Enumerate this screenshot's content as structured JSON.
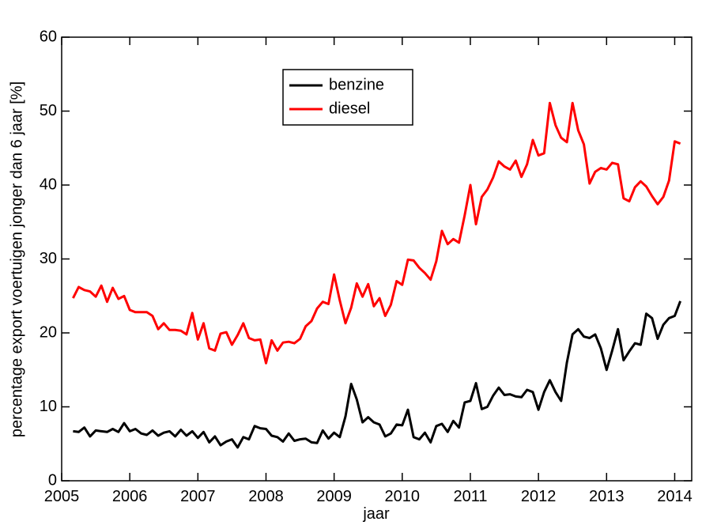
{
  "chart_data": {
    "type": "line",
    "xlabel": "jaar",
    "ylabel": "percentage export voertuigen jonger dan 6 jaar [%]",
    "x": [
      2005.167,
      2005.25,
      2005.333,
      2005.417,
      2005.5,
      2005.583,
      2005.667,
      2005.75,
      2005.833,
      2005.917,
      2006,
      2006.083,
      2006.167,
      2006.25,
      2006.333,
      2006.417,
      2006.5,
      2006.583,
      2006.667,
      2006.75,
      2006.833,
      2006.917,
      2007,
      2007.083,
      2007.167,
      2007.25,
      2007.333,
      2007.417,
      2007.5,
      2007.583,
      2007.667,
      2007.75,
      2007.833,
      2007.917,
      2008,
      2008.083,
      2008.167,
      2008.25,
      2008.333,
      2008.417,
      2008.5,
      2008.583,
      2008.667,
      2008.75,
      2008.833,
      2008.917,
      2009,
      2009.083,
      2009.167,
      2009.25,
      2009.333,
      2009.417,
      2009.5,
      2009.583,
      2009.667,
      2009.75,
      2009.833,
      2009.917,
      2010,
      2010.083,
      2010.167,
      2010.25,
      2010.333,
      2010.417,
      2010.5,
      2010.583,
      2010.667,
      2010.75,
      2010.833,
      2010.917,
      2011,
      2011.083,
      2011.167,
      2011.25,
      2011.333,
      2011.417,
      2011.5,
      2011.583,
      2011.667,
      2011.75,
      2011.833,
      2011.917,
      2012,
      2012.083,
      2012.167,
      2012.25,
      2012.333,
      2012.417,
      2012.5,
      2012.583,
      2012.667,
      2012.75,
      2012.833,
      2012.917,
      2013,
      2013.083,
      2013.167,
      2013.25,
      2013.333,
      2013.417,
      2013.5,
      2013.583,
      2013.667,
      2013.75,
      2013.833,
      2013.917,
      2014,
      2014.083
    ],
    "series": [
      {
        "name": "benzine",
        "color": "#000000",
        "values": [
          6.7,
          6.6,
          7.2,
          6.0,
          6.8,
          6.7,
          6.6,
          7.0,
          6.6,
          7.8,
          6.7,
          7.0,
          6.4,
          6.2,
          6.8,
          6.1,
          6.5,
          6.7,
          6.0,
          6.9,
          6.1,
          6.7,
          5.8,
          6.6,
          5.2,
          6.0,
          4.8,
          5.3,
          5.6,
          4.5,
          5.9,
          5.6,
          7.4,
          7.1,
          7.0,
          6.1,
          5.9,
          5.3,
          6.4,
          5.4,
          5.6,
          5.7,
          5.2,
          5.1,
          6.8,
          5.7,
          6.5,
          5.9,
          8.7,
          13.1,
          11.0,
          7.9,
          8.6,
          7.9,
          7.6,
          6.0,
          6.4,
          7.6,
          7.5,
          9.6,
          5.9,
          5.6,
          6.5,
          5.2,
          7.4,
          7.7,
          6.6,
          8.1,
          7.2,
          10.6,
          10.8,
          13.2,
          9.7,
          10.0,
          11.5,
          12.6,
          11.6,
          11.7,
          11.4,
          11.3,
          12.3,
          12.0,
          9.6,
          12.0,
          13.6,
          12.0,
          10.8,
          16.0,
          19.8,
          20.5,
          19.5,
          19.3,
          19.8,
          17.9,
          15.0,
          17.6,
          20.5,
          16.3,
          17.5,
          18.6,
          18.4,
          22.6,
          22.0,
          19.2,
          21.1,
          22.0,
          22.3,
          24.3
        ]
      },
      {
        "name": "diesel",
        "color": "#ff0000",
        "values": [
          24.7,
          26.2,
          25.8,
          25.6,
          24.9,
          26.4,
          24.2,
          26.1,
          24.6,
          25.0,
          23.1,
          22.8,
          22.8,
          22.8,
          22.3,
          20.5,
          21.3,
          20.4,
          20.4,
          20.3,
          19.8,
          22.7,
          19.1,
          21.3,
          17.9,
          17.6,
          19.9,
          20.1,
          18.4,
          19.7,
          21.3,
          19.3,
          19.0,
          19.1,
          15.9,
          19.0,
          17.6,
          18.7,
          18.8,
          18.6,
          19.2,
          20.9,
          21.6,
          23.3,
          24.2,
          23.9,
          27.9,
          24.4,
          21.3,
          23.4,
          26.7,
          24.9,
          26.6,
          23.6,
          24.7,
          22.3,
          23.8,
          27.0,
          26.5,
          29.9,
          29.8,
          28.8,
          28.1,
          27.2,
          29.7,
          33.8,
          32.0,
          32.7,
          32.2,
          35.9,
          40.0,
          34.7,
          38.4,
          39.4,
          41.0,
          43.2,
          42.5,
          42.1,
          43.3,
          41.1,
          42.8,
          46.1,
          44.0,
          44.3,
          51.1,
          48.1,
          46.4,
          45.8,
          51.1,
          47.4,
          45.5,
          40.2,
          41.8,
          42.3,
          42.1,
          43.0,
          42.8,
          38.2,
          37.8,
          39.7,
          40.5,
          39.8,
          38.5,
          37.4,
          38.4,
          40.6,
          45.9,
          45.6
        ]
      }
    ],
    "xlim": [
      2005,
      2014.25
    ],
    "xticks": [
      2005,
      2006,
      2007,
      2008,
      2009,
      2010,
      2011,
      2012,
      2013,
      2014
    ],
    "ylim": [
      0,
      60
    ],
    "yticks": [
      0,
      10,
      20,
      30,
      40,
      50,
      60
    ],
    "legend": "upper center",
    "grid": false
  }
}
